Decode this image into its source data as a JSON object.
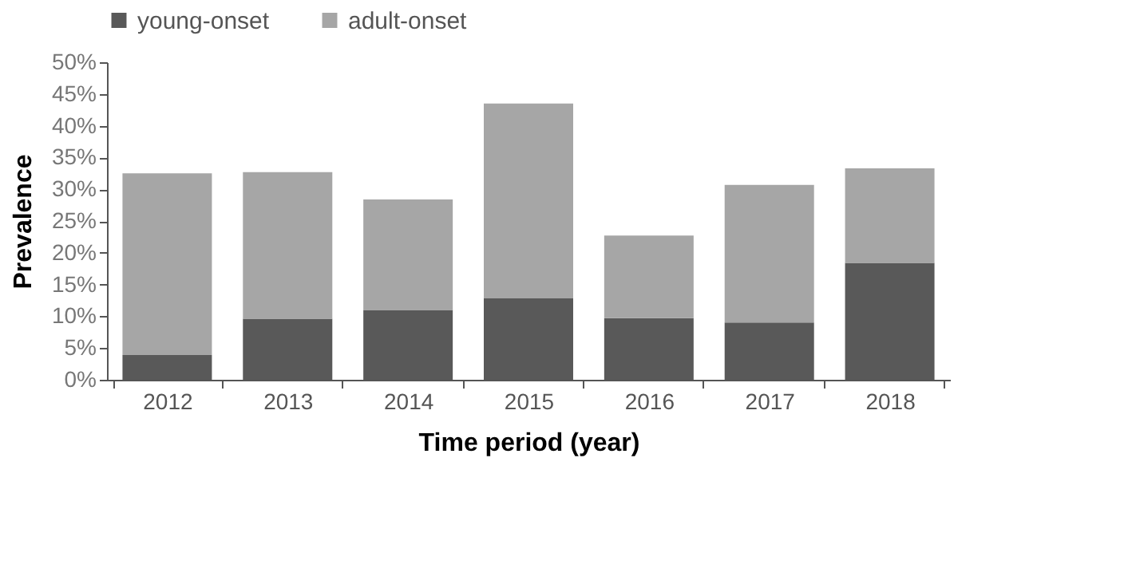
{
  "chart_data": {
    "type": "bar",
    "stacked": true,
    "xlabel": "Time period (year)",
    "ylabel": "Prevalence",
    "categories": [
      "2012",
      "2013",
      "2014",
      "2015",
      "2016",
      "2017",
      "2018"
    ],
    "series": [
      {
        "name": "young-onset",
        "color": "#595959",
        "values": [
          3.9,
          9.6,
          11.0,
          12.8,
          9.7,
          9.0,
          18.4
        ]
      },
      {
        "name": "adult-onset",
        "color": "#a6a6a6",
        "values": [
          28.6,
          23.1,
          17.4,
          30.7,
          13.0,
          21.7,
          14.9
        ]
      }
    ],
    "ylim": [
      0,
      50
    ],
    "yticks": [
      {
        "value": 0,
        "label": "0%"
      },
      {
        "value": 5,
        "label": "5%"
      },
      {
        "value": 10,
        "label": "10%"
      },
      {
        "value": 15,
        "label": "15%"
      },
      {
        "value": 20,
        "label": "20%"
      },
      {
        "value": 25,
        "label": "25%"
      },
      {
        "value": 30,
        "label": "30%"
      },
      {
        "value": 35,
        "label": "35%"
      },
      {
        "value": 40,
        "label": "40%"
      },
      {
        "value": 45,
        "label": "45%"
      },
      {
        "value": 50,
        "label": "50%"
      }
    ],
    "grid": false,
    "legend": "top"
  }
}
